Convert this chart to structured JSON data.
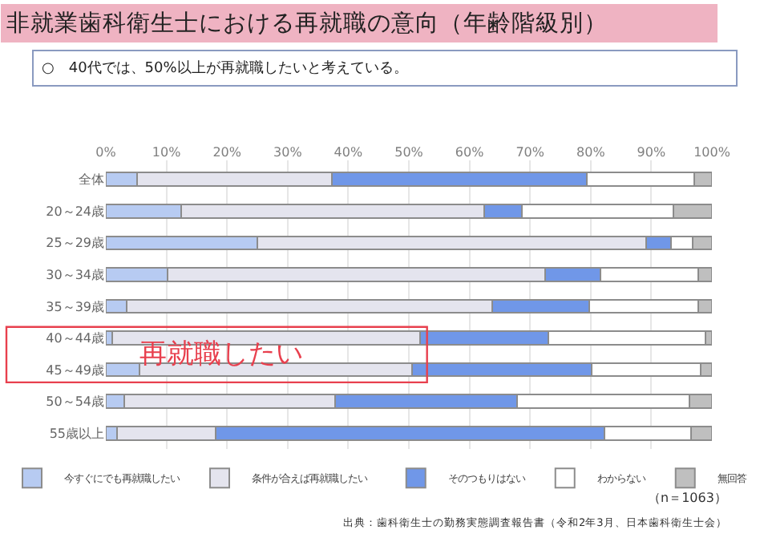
{
  "chart_data": {
    "type": "bar",
    "orientation": "horizontal",
    "stacked": true,
    "title": "非就業歯科衛生士における再就職の意向（年齢階級別）",
    "subtitle": "○　40代では、50%以上が再就職したいと考えている。",
    "categories": [
      "全体",
      "20～24歳",
      "25～29歳",
      "30～34歳",
      "35～39歳",
      "40～44歳",
      "45～49歳",
      "50～54歳",
      "55歳以上"
    ],
    "series": [
      {
        "name": "今すぐにでも再就職したい",
        "color": "#b7cbf2",
        "values": [
          5.1,
          12.4,
          25.0,
          10.2,
          3.4,
          1.1,
          5.6,
          3.1,
          1.9
        ]
      },
      {
        "name": "条件が合えば再就職したい",
        "color": "#e4e4ee",
        "values": [
          32.2,
          50.0,
          64.2,
          62.3,
          60.3,
          50.8,
          44.9,
          34.7,
          16.2
        ]
      },
      {
        "name": "そのつもりはない",
        "color": "#7097e8",
        "values": [
          42.1,
          6.2,
          4.1,
          9.1,
          16.0,
          21.1,
          29.6,
          30.0,
          64.2
        ]
      },
      {
        "name": "わからない",
        "color": "#ffffff",
        "values": [
          17.7,
          25.1,
          3.5,
          16.1,
          18.1,
          25.9,
          18.0,
          28.5,
          14.3
        ]
      },
      {
        "name": "無回答",
        "color": "#bfbfbf",
        "values": [
          2.9,
          6.3,
          3.2,
          2.3,
          2.2,
          1.1,
          1.9,
          3.7,
          3.4
        ]
      }
    ],
    "xlim": [
      0,
      100
    ],
    "xticks": [
      {
        "value": 0,
        "label": "0%"
      },
      {
        "value": 10,
        "label": "10%"
      },
      {
        "value": 20,
        "label": "20%"
      },
      {
        "value": 30,
        "label": "30%"
      },
      {
        "value": 40,
        "label": "40%"
      },
      {
        "value": 50,
        "label": "50%"
      },
      {
        "value": 60,
        "label": "60%"
      },
      {
        "value": 70,
        "label": "70%"
      },
      {
        "value": 80,
        "label": "80%"
      },
      {
        "value": 90,
        "label": "90%"
      },
      {
        "value": 100,
        "label": "100%"
      }
    ],
    "grid": "x",
    "legend": "bottom",
    "annotations": [
      "再就職したい",
      "（n＝1063）",
      "出典：歯科衛生士の勤務実態調査報告書（令和2年3月、日本歯科衛生士会）"
    ]
  }
}
